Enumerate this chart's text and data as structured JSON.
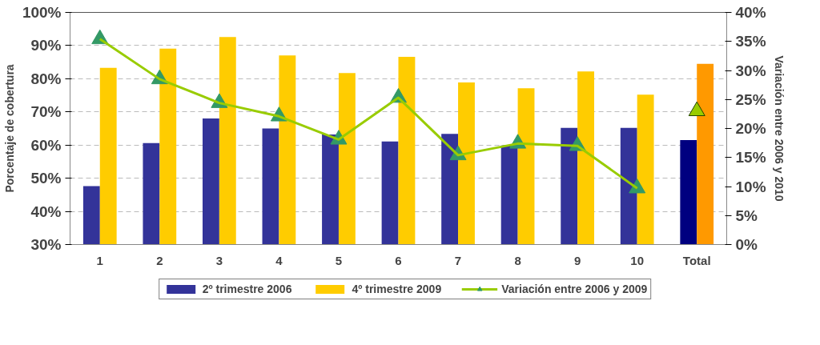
{
  "chart_data": {
    "type": "bar",
    "categories": [
      "1",
      "2",
      "3",
      "4",
      "5",
      "6",
      "7",
      "8",
      "9",
      "10",
      "Total"
    ],
    "ylabel": "Porcentaje de cobertura",
    "y2label": "Variación entre 2006 y 2010",
    "series": [
      {
        "name": "2º trimestre 2006",
        "color": "#333399",
        "colors": [
          "#333399",
          "#333399",
          "#333399",
          "#333399",
          "#333399",
          "#333399",
          "#333399",
          "#333399",
          "#333399",
          "#333399",
          "#000080"
        ],
        "values": [
          47.6,
          60.6,
          68.0,
          65.0,
          63.2,
          61.1,
          63.4,
          59.9,
          65.2,
          65.2,
          61.5
        ]
      },
      {
        "name": "4º trimestre 2009",
        "color": "#ffcc00",
        "colors": [
          "#ffcc00",
          "#ffcc00",
          "#ffcc00",
          "#ffcc00",
          "#ffcc00",
          "#ffcc00",
          "#ffcc00",
          "#ffcc00",
          "#ffcc00",
          "#ffcc00",
          "#ff9900"
        ],
        "values": [
          83.3,
          89.1,
          92.6,
          87.0,
          81.7,
          86.6,
          78.9,
          77.1,
          82.2,
          75.2,
          84.5
        ]
      },
      {
        "name": "Variación entre 2006 y 2009",
        "type": "line",
        "axis": "y2",
        "color": "#99cc00",
        "colors": [
          "#339966",
          "#339966",
          "#339966",
          "#339966",
          "#339966",
          "#339966",
          "#339966",
          "#339966",
          "#339966",
          "#339966",
          "#339966"
        ],
        "values": [
          35.4,
          28.5,
          24.4,
          22.1,
          18.1,
          25.3,
          15.4,
          17.4,
          17.0,
          9.7,
          null
        ]
      },
      {
        "type": "scatter",
        "axis": "y2",
        "color": "#99cc00",
        "values": [
          null,
          null,
          null,
          null,
          null,
          null,
          null,
          null,
          null,
          null,
          23.0
        ]
      }
    ],
    "ylim": [
      30,
      100
    ],
    "yticks": [
      {
        "value": 30,
        "label": "30%"
      },
      {
        "value": 40,
        "label": "40%"
      },
      {
        "value": 50,
        "label": "50%"
      },
      {
        "value": 60,
        "label": "60%"
      },
      {
        "value": 70,
        "label": "70%"
      },
      {
        "value": 80,
        "label": "80%"
      },
      {
        "value": 90,
        "label": "90%"
      },
      {
        "value": 100,
        "label": "100%"
      }
    ],
    "y2lim": [
      0,
      40
    ],
    "y2ticks": [
      {
        "value": 0,
        "label": "0%"
      },
      {
        "value": 5,
        "label": "5%"
      },
      {
        "value": 10,
        "label": "10%"
      },
      {
        "value": 15,
        "label": "15%"
      },
      {
        "value": 20,
        "label": "20%"
      },
      {
        "value": 25,
        "label": "25%"
      },
      {
        "value": 30,
        "label": "30%"
      },
      {
        "value": 35,
        "label": "35%"
      },
      {
        "value": 40,
        "label": "40%"
      }
    ],
    "grid": "y",
    "legend": "bottom",
    "marker": "triangle"
  }
}
